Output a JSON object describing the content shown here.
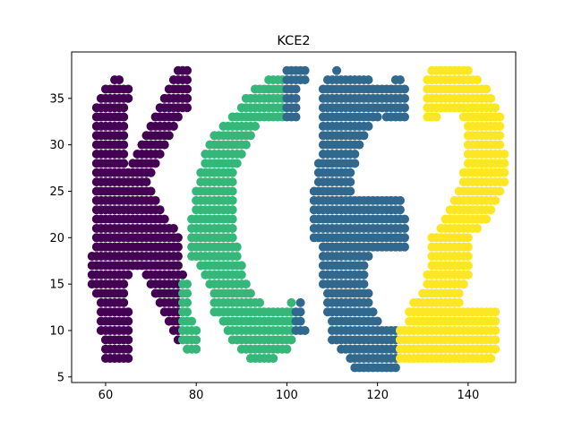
{
  "chart_data": {
    "type": "scatter",
    "title": "KCE2",
    "xlabel": "",
    "ylabel": "",
    "xlim": [
      52.5,
      150.5
    ],
    "ylim": [
      4.4,
      40.0
    ],
    "xticks": [
      60,
      80,
      100,
      120,
      140
    ],
    "yticks": [
      5,
      10,
      15,
      20,
      25,
      30,
      35
    ],
    "grid": false,
    "legend": "none",
    "cluster_colors": [
      "#440154",
      "#35b779",
      "#31688e",
      "#fde725"
    ],
    "rows": [
      {
        "y": 38,
        "runs": [
          [
            76,
            78,
            0
          ],
          [
            100,
            104,
            2
          ],
          [
            111,
            111,
            2
          ],
          [
            132,
            140,
            3
          ]
        ]
      },
      {
        "y": 37,
        "runs": [
          [
            62,
            63,
            0
          ],
          [
            75,
            78,
            0
          ],
          [
            96,
            99,
            1
          ],
          [
            100,
            104,
            2
          ],
          [
            109,
            118,
            2
          ],
          [
            124,
            125,
            2
          ],
          [
            131,
            142,
            3
          ]
        ]
      },
      {
        "y": 36,
        "runs": [
          [
            60,
            65,
            0
          ],
          [
            74,
            78,
            0
          ],
          [
            93,
            99,
            1
          ],
          [
            100,
            102,
            2
          ],
          [
            108,
            126,
            2
          ],
          [
            131,
            144,
            3
          ]
        ]
      },
      {
        "y": 35,
        "runs": [
          [
            59,
            65,
            0
          ],
          [
            73,
            78,
            0
          ],
          [
            91,
            99,
            1
          ],
          [
            100,
            102,
            2
          ],
          [
            108,
            126,
            2
          ],
          [
            131,
            145,
            3
          ]
        ]
      },
      {
        "y": 34,
        "runs": [
          [
            58,
            64,
            0
          ],
          [
            72,
            78,
            0
          ],
          [
            90,
            99,
            1
          ],
          [
            100,
            102,
            2
          ],
          [
            108,
            126,
            2
          ],
          [
            131,
            146,
            3
          ]
        ]
      },
      {
        "y": 33,
        "runs": [
          [
            58,
            64,
            0
          ],
          [
            71,
            76,
            0
          ],
          [
            88,
            99,
            1
          ],
          [
            100,
            102,
            2
          ],
          [
            108,
            120,
            2
          ],
          [
            122,
            126,
            2
          ],
          [
            131,
            133,
            3
          ],
          [
            139,
            147,
            3
          ]
        ]
      },
      {
        "y": 32,
        "runs": [
          [
            58,
            64,
            0
          ],
          [
            70,
            75,
            0
          ],
          [
            86,
            93,
            1
          ],
          [
            108,
            118,
            2
          ],
          [
            140,
            147,
            3
          ]
        ]
      },
      {
        "y": 31,
        "runs": [
          [
            58,
            64,
            0
          ],
          [
            69,
            74,
            0
          ],
          [
            84,
            92,
            1
          ],
          [
            108,
            117,
            2
          ],
          [
            140,
            147,
            3
          ]
        ]
      },
      {
        "y": 30,
        "runs": [
          [
            58,
            64,
            0
          ],
          [
            68,
            73,
            0
          ],
          [
            83,
            91,
            1
          ],
          [
            108,
            116,
            2
          ],
          [
            140,
            147,
            3
          ]
        ]
      },
      {
        "y": 29,
        "runs": [
          [
            58,
            64,
            0
          ],
          [
            67,
            72,
            0
          ],
          [
            82,
            90,
            1
          ],
          [
            108,
            115,
            2
          ],
          [
            140,
            148,
            3
          ]
        ]
      },
      {
        "y": 28,
        "runs": [
          [
            58,
            64,
            0
          ],
          [
            66,
            71,
            0
          ],
          [
            82,
            89,
            1
          ],
          [
            107,
            115,
            2
          ],
          [
            140,
            148,
            3
          ]
        ]
      },
      {
        "y": 27,
        "runs": [
          [
            58,
            64,
            0
          ],
          [
            65,
            70,
            0
          ],
          [
            81,
            88,
            1
          ],
          [
            107,
            114,
            2
          ],
          [
            139,
            148,
            3
          ]
        ]
      },
      {
        "y": 26,
        "runs": [
          [
            58,
            69,
            0
          ],
          [
            81,
            88,
            1
          ],
          [
            107,
            114,
            2
          ],
          [
            139,
            148,
            3
          ]
        ]
      },
      {
        "y": 25,
        "runs": [
          [
            58,
            70,
            0
          ],
          [
            80,
            88,
            1
          ],
          [
            106,
            114,
            2
          ],
          [
            138,
            147,
            3
          ]
        ]
      },
      {
        "y": 24,
        "runs": [
          [
            58,
            71,
            0
          ],
          [
            80,
            88,
            1
          ],
          [
            106,
            125,
            2
          ],
          [
            137,
            146,
            3
          ]
        ]
      },
      {
        "y": 23,
        "runs": [
          [
            58,
            72,
            0
          ],
          [
            80,
            88,
            1
          ],
          [
            106,
            125,
            2
          ],
          [
            136,
            145,
            3
          ]
        ]
      },
      {
        "y": 22,
        "runs": [
          [
            58,
            73,
            0
          ],
          [
            79,
            88,
            1
          ],
          [
            106,
            126,
            2
          ],
          [
            135,
            144,
            3
          ]
        ]
      },
      {
        "y": 21,
        "runs": [
          [
            58,
            75,
            0
          ],
          [
            79,
            88,
            1
          ],
          [
            106,
            126,
            2
          ],
          [
            134,
            142,
            3
          ]
        ]
      },
      {
        "y": 20,
        "runs": [
          [
            58,
            76,
            0
          ],
          [
            79,
            88,
            1
          ],
          [
            106,
            126,
            2
          ],
          [
            132,
            140,
            3
          ]
        ]
      },
      {
        "y": 19,
        "runs": [
          [
            58,
            76,
            0
          ],
          [
            79,
            89,
            1
          ],
          [
            108,
            126,
            2
          ],
          [
            132,
            140,
            3
          ]
        ]
      },
      {
        "y": 18,
        "runs": [
          [
            57,
            76,
            0
          ],
          [
            79,
            89,
            1
          ],
          [
            108,
            118,
            2
          ],
          [
            132,
            140,
            3
          ]
        ]
      },
      {
        "y": 17,
        "runs": [
          [
            57,
            66,
            0
          ],
          [
            67,
            76,
            0
          ],
          [
            81,
            90,
            1
          ],
          [
            108,
            117,
            2
          ],
          [
            132,
            138,
            3
          ],
          [
            139,
            140,
            3
          ]
        ]
      },
      {
        "y": 16,
        "runs": [
          [
            57,
            65,
            0
          ],
          [
            69,
            77,
            0
          ],
          [
            82,
            90,
            1
          ],
          [
            108,
            117,
            2
          ],
          [
            131,
            140,
            3
          ]
        ]
      },
      {
        "y": 15,
        "runs": [
          [
            57,
            64,
            0
          ],
          [
            70,
            76,
            0
          ],
          [
            77,
            78,
            1
          ],
          [
            83,
            91,
            1
          ],
          [
            108,
            117,
            2
          ],
          [
            131,
            139,
            3
          ]
        ]
      },
      {
        "y": 14,
        "runs": [
          [
            58,
            64,
            0
          ],
          [
            71,
            76,
            0
          ],
          [
            77,
            78,
            1
          ],
          [
            84,
            92,
            1
          ],
          [
            109,
            118,
            2
          ],
          [
            130,
            138,
            3
          ]
        ]
      },
      {
        "y": 13,
        "runs": [
          [
            59,
            64,
            0
          ],
          [
            72,
            76,
            0
          ],
          [
            77,
            78,
            1
          ],
          [
            84,
            94,
            1
          ],
          [
            101,
            101,
            1
          ],
          [
            103,
            103,
            2
          ],
          [
            109,
            118,
            2
          ],
          [
            128,
            138,
            3
          ]
        ]
      },
      {
        "y": 12,
        "runs": [
          [
            59,
            65,
            0
          ],
          [
            73,
            76,
            0
          ],
          [
            77,
            78,
            1
          ],
          [
            84,
            101,
            1
          ],
          [
            102,
            103,
            2
          ],
          [
            109,
            119,
            2
          ],
          [
            127,
            146,
            3
          ]
        ]
      },
      {
        "y": 11,
        "runs": [
          [
            59,
            65,
            0
          ],
          [
            74,
            76,
            0
          ],
          [
            77,
            79,
            1
          ],
          [
            86,
            101,
            1
          ],
          [
            102,
            103,
            2
          ],
          [
            110,
            120,
            2
          ],
          [
            127,
            146,
            3
          ]
        ]
      },
      {
        "y": 10,
        "runs": [
          [
            59,
            65,
            0
          ],
          [
            75,
            76,
            0
          ],
          [
            77,
            80,
            1
          ],
          [
            87,
            101,
            1
          ],
          [
            102,
            104,
            2
          ],
          [
            110,
            124,
            2
          ],
          [
            125,
            146,
            3
          ]
        ]
      },
      {
        "y": 9,
        "runs": [
          [
            60,
            65,
            0
          ],
          [
            76,
            76,
            0
          ],
          [
            77,
            80,
            1
          ],
          [
            88,
            101,
            1
          ],
          [
            110,
            124,
            2
          ],
          [
            125,
            146,
            3
          ]
        ]
      },
      {
        "y": 8,
        "runs": [
          [
            60,
            65,
            0
          ],
          [
            78,
            80,
            1
          ],
          [
            90,
            100,
            1
          ],
          [
            112,
            124,
            2
          ],
          [
            125,
            146,
            3
          ]
        ]
      },
      {
        "y": 7,
        "runs": [
          [
            60,
            65,
            0
          ],
          [
            92,
            97,
            1
          ],
          [
            114,
            124,
            2
          ],
          [
            125,
            145,
            3
          ]
        ]
      },
      {
        "y": 6,
        "runs": [
          [
            115,
            124,
            2
          ]
        ]
      }
    ]
  }
}
